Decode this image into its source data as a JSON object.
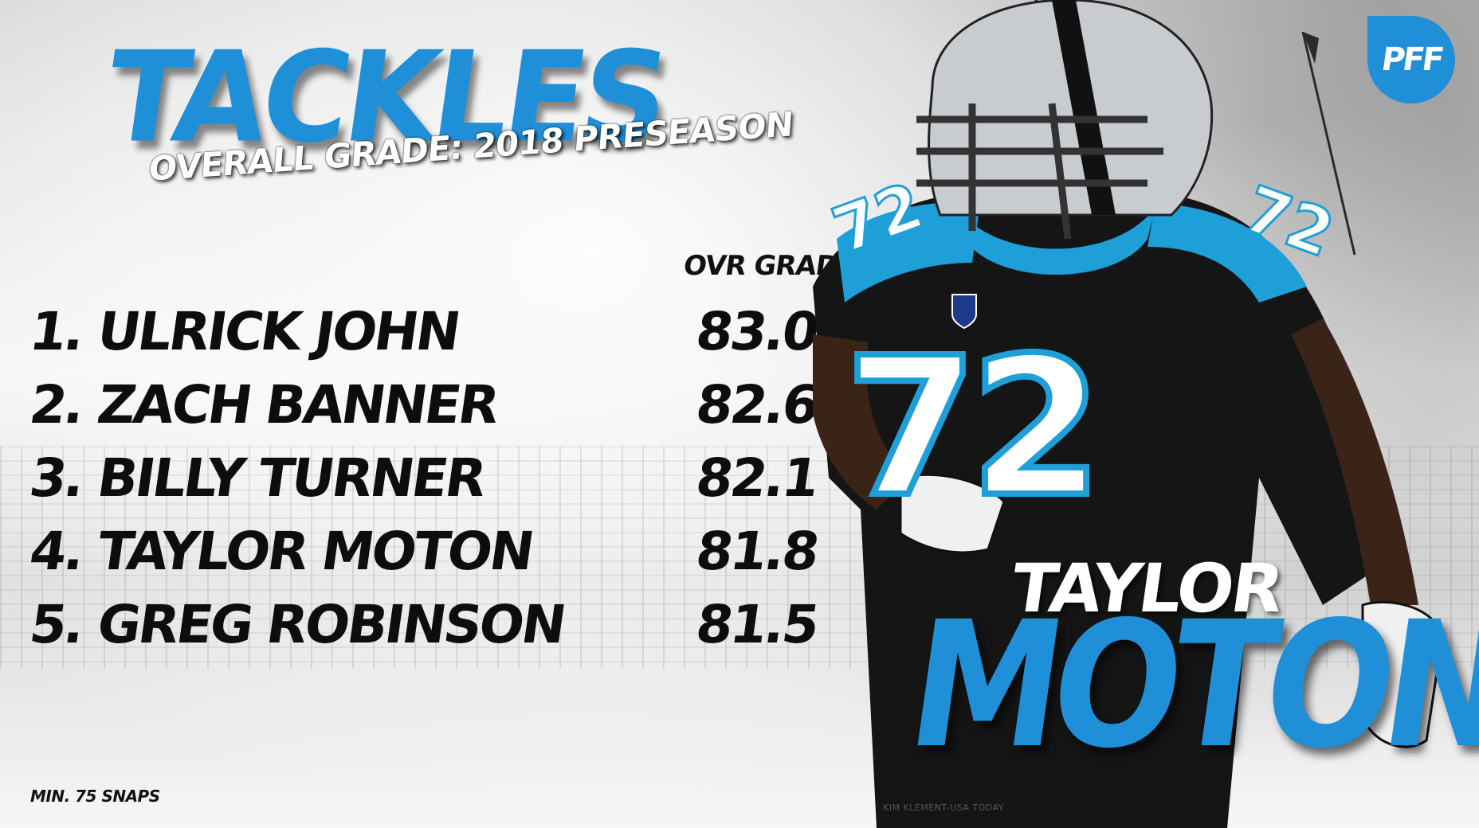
{
  "header": {
    "title": "TACKLES",
    "subtitle": "OVERALL GRADE: 2018 PRESEASON",
    "column_header": "OVR GRADE"
  },
  "rankings": [
    {
      "name": "1. ULRICK JOHN",
      "grade": "83.0"
    },
    {
      "name": "2. ZACH BANNER",
      "grade": "82.6"
    },
    {
      "name": "3. BILLY TURNER",
      "grade": "82.1"
    },
    {
      "name": "4. TAYLOR MOTON",
      "grade": "81.8"
    },
    {
      "name": "5. GREG ROBINSON",
      "grade": "81.5"
    }
  ],
  "footnote": "MIN. 75 SNAPS",
  "photo_credit": "KIM KLEMENT-USA TODAY",
  "featured": {
    "first_name": "TAYLOR",
    "last_name": "MOTON",
    "jersey_number": "72"
  },
  "logo": {
    "text": "PFF"
  },
  "colors": {
    "accent": "#1f8fd8",
    "text_dark": "#0d0d0d",
    "jersey": "#151515",
    "jersey_trim": "#1e9fd8"
  }
}
